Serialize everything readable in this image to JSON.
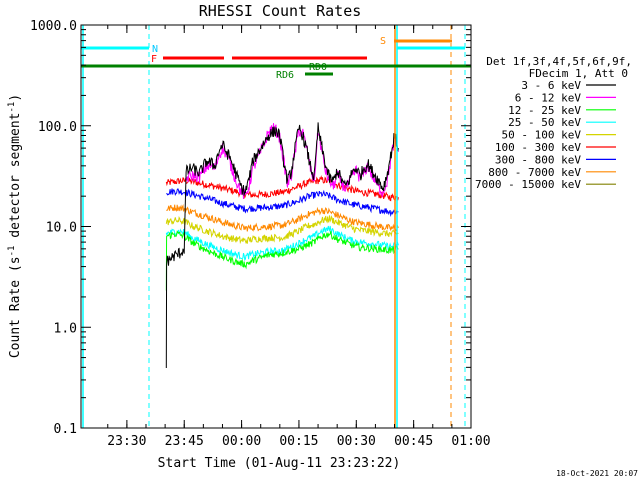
{
  "chart_data": {
    "type": "line",
    "title": "RHESSI Count Rates",
    "xlabel": "Start Time (01-Aug-11 23:23:22)",
    "ylabel_main": "Count Rate (s",
    "ylabel_exp1": "-1",
    "ylabel_mid": " detector segment",
    "ylabel_exp2": "-1",
    "ylabel_end": ")",
    "timestamp": "18-Oct-2021 20:07",
    "y_scale": "log",
    "ylim": [
      0.1,
      1000
    ],
    "xlim_minutes": [
      -5,
      97
    ],
    "x_ticks": [
      {
        "min": 7,
        "label": "23:30"
      },
      {
        "min": 22,
        "label": "23:45"
      },
      {
        "min": 37,
        "label": "00:00"
      },
      {
        "min": 52,
        "label": "00:15"
      },
      {
        "min": 67,
        "label": "00:30"
      },
      {
        "min": 82,
        "label": "00:45"
      },
      {
        "min": 97,
        "label": "01:00"
      }
    ],
    "y_ticks": [
      {
        "v": 0.1,
        "label": "0.1"
      },
      {
        "v": 1,
        "label": "1.0"
      },
      {
        "v": 10,
        "label": "10.0"
      },
      {
        "v": 100,
        "label": "100.0"
      },
      {
        "v": 1000,
        "label": "1000.0"
      }
    ],
    "legend": {
      "header1": "Det 1f,3f,4f,5f,6f,9f,",
      "header2": "FDecim 1, Att 0",
      "placement": "right",
      "entries": [
        {
          "label": "3 - 6 keV",
          "color": "#000000"
        },
        {
          "label": "6 - 12 keV",
          "color": "#ff00ff"
        },
        {
          "label": "12 - 25 keV",
          "color": "#00ff00"
        },
        {
          "label": "25 - 50 keV",
          "color": "#00ffff"
        },
        {
          "label": "50 - 100 keV",
          "color": "#d4d400"
        },
        {
          "label": "100 - 300 keV",
          "color": "#ff0000"
        },
        {
          "label": "300 - 800 keV",
          "color": "#0000ff"
        },
        {
          "label": "800 - 7000 keV",
          "color": "#ff8800"
        },
        {
          "label": "7000 - 15000 keV",
          "color": "#808000"
        }
      ]
    },
    "series": [
      {
        "name": "3 - 6 keV",
        "color": "#000000",
        "points": [
          [
            17.3,
            0.4
          ],
          [
            17.4,
            4.5
          ],
          [
            19,
            5
          ],
          [
            21,
            5.5
          ],
          [
            22,
            6
          ],
          [
            22.5,
            35
          ],
          [
            24,
            38
          ],
          [
            26,
            34
          ],
          [
            28,
            45
          ],
          [
            30,
            40
          ],
          [
            31,
            55
          ],
          [
            32,
            65
          ],
          [
            33,
            55
          ],
          [
            34,
            48
          ],
          [
            35,
            38
          ],
          [
            36,
            30
          ],
          [
            37,
            24
          ],
          [
            38,
            22
          ],
          [
            39,
            30
          ],
          [
            40,
            45
          ],
          [
            42,
            60
          ],
          [
            44,
            80
          ],
          [
            46,
            90
          ],
          [
            47,
            80
          ],
          [
            48,
            45
          ],
          [
            49,
            28
          ],
          [
            50,
            35
          ],
          [
            51,
            60
          ],
          [
            52,
            95
          ],
          [
            53,
            80
          ],
          [
            54,
            58
          ],
          [
            55,
            40
          ],
          [
            56,
            30
          ],
          [
            57,
            95
          ],
          [
            58,
            60
          ],
          [
            59,
            40
          ],
          [
            60,
            30
          ],
          [
            61,
            28
          ],
          [
            62,
            36
          ],
          [
            63,
            30
          ],
          [
            64,
            25
          ],
          [
            65,
            28
          ],
          [
            66,
            35
          ],
          [
            67,
            38
          ],
          [
            68,
            32
          ],
          [
            69,
            38
          ],
          [
            70,
            42
          ],
          [
            71,
            36
          ],
          [
            72,
            32
          ],
          [
            73,
            28
          ],
          [
            74,
            24
          ],
          [
            75,
            32
          ],
          [
            76,
            50
          ],
          [
            77,
            80
          ],
          [
            78,
            60
          ]
        ]
      },
      {
        "name": "6 - 12 keV",
        "color": "#ff00ff",
        "points": [
          [
            22.5,
            30
          ],
          [
            24,
            32
          ],
          [
            26,
            31
          ],
          [
            28,
            40
          ],
          [
            30,
            38
          ],
          [
            31,
            50
          ],
          [
            32,
            60
          ],
          [
            33,
            52
          ],
          [
            34,
            42
          ],
          [
            35,
            33
          ],
          [
            36,
            26
          ],
          [
            37,
            22
          ],
          [
            38,
            20
          ],
          [
            39,
            26
          ],
          [
            40,
            38
          ],
          [
            42,
            55
          ],
          [
            44,
            85
          ],
          [
            45,
            95
          ],
          [
            46,
            90
          ],
          [
            47,
            75
          ],
          [
            48,
            45
          ],
          [
            49,
            26
          ],
          [
            50,
            32
          ],
          [
            51,
            55
          ],
          [
            52,
            90
          ],
          [
            53,
            85
          ],
          [
            54,
            60
          ],
          [
            55,
            38
          ],
          [
            56,
            28
          ],
          [
            57,
            90
          ],
          [
            58,
            55
          ],
          [
            59,
            35
          ],
          [
            60,
            28
          ],
          [
            61,
            25
          ],
          [
            62,
            32
          ],
          [
            63,
            28
          ],
          [
            64,
            24
          ],
          [
            65,
            26
          ],
          [
            66,
            32
          ],
          [
            67,
            36
          ],
          [
            68,
            30
          ],
          [
            69,
            34
          ],
          [
            70,
            40
          ],
          [
            71,
            33
          ],
          [
            72,
            28
          ],
          [
            73,
            24
          ],
          [
            74,
            22
          ],
          [
            75,
            28
          ],
          [
            76,
            45
          ],
          [
            77,
            75
          ],
          [
            78,
            55
          ]
        ]
      },
      {
        "name": "12 - 25 keV",
        "color": "#00ff00",
        "points": [
          [
            17.3,
            2.4
          ],
          [
            17.4,
            8
          ],
          [
            20,
            8.5
          ],
          [
            22,
            8
          ],
          [
            24,
            7
          ],
          [
            28,
            5.8
          ],
          [
            32,
            5
          ],
          [
            36,
            4.4
          ],
          [
            38,
            4.2
          ],
          [
            40,
            4.6
          ],
          [
            44,
            5.2
          ],
          [
            48,
            5.5
          ],
          [
            52,
            6
          ],
          [
            54,
            6.5
          ],
          [
            56,
            7
          ],
          [
            58,
            8
          ],
          [
            60,
            8.5
          ],
          [
            62,
            7.5
          ],
          [
            64,
            7
          ],
          [
            66,
            6.5
          ],
          [
            68,
            6.2
          ],
          [
            72,
            6
          ],
          [
            76,
            5.8
          ],
          [
            78,
            6
          ]
        ]
      },
      {
        "name": "25 - 50 keV",
        "color": "#00ffff",
        "points": [
          [
            17.3,
            8.5
          ],
          [
            20,
            9
          ],
          [
            22,
            8.8
          ],
          [
            24,
            7.8
          ],
          [
            28,
            6.6
          ],
          [
            32,
            5.8
          ],
          [
            36,
            5.2
          ],
          [
            38,
            5
          ],
          [
            40,
            5.3
          ],
          [
            44,
            5.6
          ],
          [
            48,
            5.8
          ],
          [
            52,
            6.8
          ],
          [
            54,
            7.5
          ],
          [
            56,
            8
          ],
          [
            58,
            9
          ],
          [
            60,
            9.5
          ],
          [
            62,
            8.5
          ],
          [
            64,
            7.8
          ],
          [
            66,
            7.2
          ],
          [
            68,
            7
          ],
          [
            72,
            6.7
          ],
          [
            76,
            6.3
          ],
          [
            78,
            6.5
          ]
        ]
      },
      {
        "name": "50 - 100 keV",
        "color": "#d4d400",
        "points": [
          [
            17.3,
            11
          ],
          [
            20,
            11.5
          ],
          [
            22,
            11.2
          ],
          [
            24,
            10.2
          ],
          [
            28,
            9
          ],
          [
            32,
            8
          ],
          [
            36,
            7.4
          ],
          [
            38,
            7.2
          ],
          [
            40,
            7.5
          ],
          [
            44,
            7.7
          ],
          [
            48,
            7.8
          ],
          [
            52,
            9
          ],
          [
            54,
            10
          ],
          [
            56,
            10.5
          ],
          [
            58,
            11.5
          ],
          [
            60,
            12
          ],
          [
            62,
            11
          ],
          [
            64,
            10.3
          ],
          [
            66,
            9.6
          ],
          [
            68,
            9.2
          ],
          [
            72,
            8.8
          ],
          [
            76,
            8.4
          ],
          [
            78,
            8.6
          ]
        ]
      },
      {
        "name": "100 - 300 keV",
        "color": "#ff0000",
        "points": [
          [
            17.3,
            27
          ],
          [
            20,
            28
          ],
          [
            22,
            28.5
          ],
          [
            24,
            28
          ],
          [
            28,
            26
          ],
          [
            32,
            24
          ],
          [
            36,
            22
          ],
          [
            38,
            21
          ],
          [
            40,
            20.5
          ],
          [
            44,
            21
          ],
          [
            48,
            22
          ],
          [
            52,
            25
          ],
          [
            54,
            27
          ],
          [
            56,
            28
          ],
          [
            58,
            29
          ],
          [
            60,
            28
          ],
          [
            62,
            26
          ],
          [
            64,
            24.5
          ],
          [
            66,
            23
          ],
          [
            68,
            22
          ],
          [
            72,
            21
          ],
          [
            76,
            19.5
          ],
          [
            78,
            19.5
          ]
        ]
      },
      {
        "name": "300 - 800 keV",
        "color": "#0000ff",
        "points": [
          [
            17.3,
            22
          ],
          [
            20,
            22.5
          ],
          [
            22,
            22
          ],
          [
            24,
            21
          ],
          [
            28,
            19
          ],
          [
            32,
            17
          ],
          [
            36,
            15.5
          ],
          [
            38,
            15
          ],
          [
            40,
            15.2
          ],
          [
            44,
            15.5
          ],
          [
            48,
            16
          ],
          [
            52,
            18
          ],
          [
            54,
            19.5
          ],
          [
            56,
            20.5
          ],
          [
            58,
            21
          ],
          [
            60,
            20
          ],
          [
            62,
            18.5
          ],
          [
            64,
            17.5
          ],
          [
            66,
            16.5
          ],
          [
            68,
            16
          ],
          [
            72,
            15
          ],
          [
            76,
            14
          ],
          [
            78,
            14
          ]
        ]
      },
      {
        "name": "800 - 7000 keV",
        "color": "#ff8800",
        "points": [
          [
            17.3,
            15
          ],
          [
            20,
            15.5
          ],
          [
            22,
            15
          ],
          [
            24,
            14
          ],
          [
            28,
            12.5
          ],
          [
            32,
            11
          ],
          [
            36,
            10
          ],
          [
            38,
            9.6
          ],
          [
            40,
            9.8
          ],
          [
            44,
            10
          ],
          [
            48,
            10.3
          ],
          [
            52,
            11.8
          ],
          [
            54,
            13
          ],
          [
            56,
            13.8
          ],
          [
            58,
            14.5
          ],
          [
            60,
            14
          ],
          [
            62,
            13
          ],
          [
            64,
            12
          ],
          [
            66,
            11.2
          ],
          [
            68,
            10.8
          ],
          [
            72,
            10.2
          ],
          [
            76,
            9.6
          ],
          [
            78,
            9.7
          ]
        ]
      },
      {
        "name": "7000 - 15000 keV",
        "color": "#808000",
        "points": []
      }
    ],
    "annotations": [
      {
        "label": "N",
        "color": "#00c8ff"
      },
      {
        "label": "F",
        "color": "#ff0000"
      },
      {
        "label": "S",
        "color": "#ff8800"
      },
      {
        "label": "RD0",
        "color": "#008000"
      },
      {
        "label": "RD6",
        "color": "#008000"
      }
    ]
  }
}
